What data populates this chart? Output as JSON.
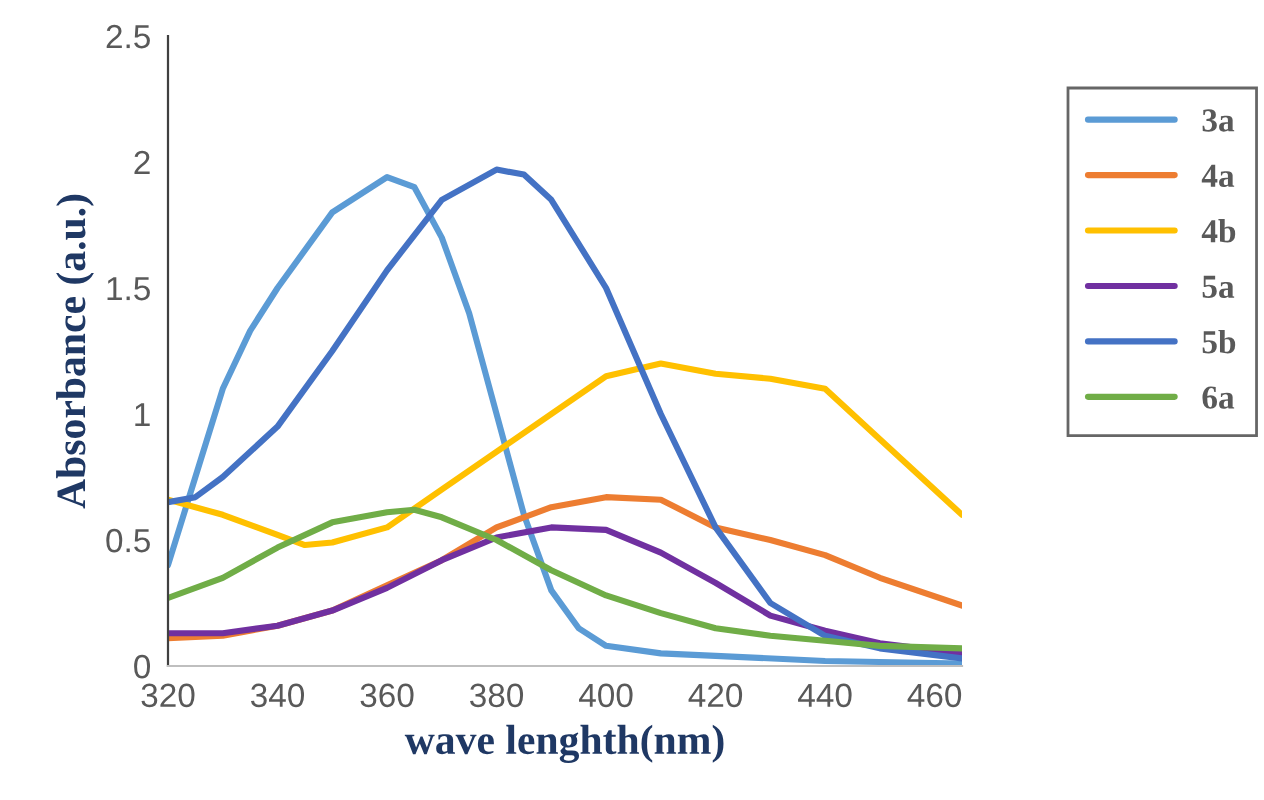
{
  "chart_data": {
    "type": "line",
    "xlabel": "wave lenghth(nm)",
    "ylabel": "Absorbance (a.u.)",
    "xlim": [
      320,
      465
    ],
    "xticks": [
      320,
      340,
      360,
      380,
      400,
      420,
      440,
      460
    ],
    "ylim": [
      0,
      2.5
    ],
    "yticks": [
      0,
      0.5,
      1,
      1.5,
      2,
      2.5
    ],
    "grid": false,
    "legend": "top right",
    "marker": "none",
    "line_style": "solid",
    "series": [
      {
        "name": "3a",
        "color": "#5b9bd5",
        "x": [
          320,
          325,
          330,
          335,
          340,
          350,
          360,
          365,
          370,
          375,
          380,
          385,
          390,
          395,
          400,
          410,
          420,
          440,
          465
        ],
        "values": [
          0.4,
          0.75,
          1.1,
          1.33,
          1.5,
          1.8,
          1.94,
          1.9,
          1.7,
          1.4,
          1.0,
          0.6,
          0.3,
          0.15,
          0.08,
          0.05,
          0.04,
          0.02,
          0.01
        ]
      },
      {
        "name": "4a",
        "color": "#ed7d31",
        "x": [
          320,
          330,
          340,
          350,
          360,
          370,
          380,
          390,
          400,
          410,
          420,
          430,
          440,
          450,
          465
        ],
        "values": [
          0.11,
          0.12,
          0.16,
          0.22,
          0.32,
          0.42,
          0.55,
          0.63,
          0.67,
          0.66,
          0.55,
          0.5,
          0.44,
          0.35,
          0.24
        ]
      },
      {
        "name": "4b",
        "color": "#ffc000",
        "x": [
          320,
          330,
          340,
          345,
          350,
          360,
          370,
          380,
          390,
          400,
          410,
          420,
          430,
          440,
          450,
          465
        ],
        "values": [
          0.66,
          0.6,
          0.52,
          0.48,
          0.49,
          0.55,
          0.7,
          0.85,
          1.0,
          1.15,
          1.2,
          1.16,
          1.14,
          1.1,
          0.9,
          0.6
        ]
      },
      {
        "name": "5a",
        "color": "#7030a0",
        "x": [
          320,
          330,
          340,
          350,
          360,
          370,
          380,
          390,
          400,
          410,
          420,
          430,
          440,
          450,
          465
        ],
        "values": [
          0.13,
          0.13,
          0.16,
          0.22,
          0.31,
          0.42,
          0.51,
          0.55,
          0.54,
          0.45,
          0.33,
          0.2,
          0.14,
          0.09,
          0.05
        ]
      },
      {
        "name": "5b",
        "color": "#4472c4",
        "x": [
          320,
          325,
          330,
          340,
          350,
          360,
          370,
          380,
          385,
          390,
          400,
          410,
          420,
          430,
          440,
          450,
          465
        ],
        "values": [
          0.65,
          0.67,
          0.75,
          0.95,
          1.25,
          1.57,
          1.85,
          1.97,
          1.95,
          1.85,
          1.5,
          1.0,
          0.55,
          0.25,
          0.12,
          0.07,
          0.03
        ]
      },
      {
        "name": "6a",
        "color": "#70ad47",
        "x": [
          320,
          330,
          340,
          350,
          360,
          365,
          370,
          380,
          390,
          400,
          410,
          420,
          430,
          440,
          450,
          465
        ],
        "values": [
          0.27,
          0.35,
          0.47,
          0.57,
          0.61,
          0.62,
          0.59,
          0.5,
          0.38,
          0.28,
          0.21,
          0.15,
          0.12,
          0.1,
          0.08,
          0.07
        ]
      }
    ]
  }
}
